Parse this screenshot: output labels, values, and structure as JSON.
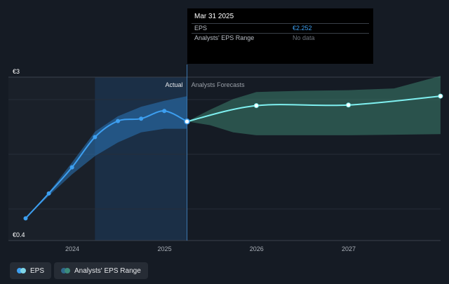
{
  "chart_data": {
    "type": "line",
    "y_axis": {
      "top_label": "€3",
      "bottom_label": "€0.4",
      "ylim": [
        0.4,
        3
      ]
    },
    "x_ticks": [
      "2024",
      "2025",
      "2026",
      "2027"
    ],
    "sections": {
      "actual_label": "Actual",
      "forecast_label": "Analysts Forecasts"
    },
    "series": [
      {
        "name": "EPS",
        "x": [
          "2023-06-30",
          "2023-09-30",
          "2023-12-31",
          "2024-03-31",
          "2024-06-30",
          "2024-09-30",
          "2024-12-31",
          "2025-03-31"
        ],
        "values": [
          0.62,
          1.04,
          1.48,
          1.99,
          2.26,
          2.3,
          2.43,
          2.252
        ]
      },
      {
        "name": "EPS Forecast",
        "x": [
          "2025-03-31",
          "2025-12-31",
          "2026-12-31",
          "2027-12-31"
        ],
        "values": [
          2.252,
          2.52,
          2.53,
          2.68
        ]
      }
    ],
    "range_actual": {
      "x": [
        "2023-06-30",
        "2023-09-30",
        "2023-12-31",
        "2024-03-31",
        "2024-06-30",
        "2024-09-30",
        "2024-12-31",
        "2025-03-31"
      ],
      "upper": [
        0.62,
        1.06,
        1.56,
        2.08,
        2.34,
        2.5,
        2.6,
        2.68
      ],
      "lower": [
        0.62,
        1.0,
        1.36,
        1.67,
        1.9,
        2.07,
        2.13,
        2.13
      ]
    },
    "range_forecast": {
      "x": [
        "2025-03-31",
        "2025-06-30",
        "2025-09-30",
        "2025-12-31",
        "2026-06-30",
        "2026-12-31",
        "2027-06-30",
        "2027-12-31"
      ],
      "upper": [
        2.252,
        2.45,
        2.63,
        2.75,
        2.77,
        2.78,
        2.81,
        3.02
      ],
      "lower": [
        2.252,
        2.19,
        2.07,
        2.02,
        2.02,
        2.02,
        2.03,
        2.04
      ]
    },
    "grid": true
  },
  "tooltip": {
    "date": "Mar 31 2025",
    "rows": [
      {
        "label": "EPS",
        "value": "€2.252"
      },
      {
        "label": "Analysts' EPS Range",
        "value": "No data"
      }
    ]
  },
  "legend": [
    {
      "label": "EPS",
      "colors": [
        "#3d9ff0",
        "#7fd6e8"
      ]
    },
    {
      "label": "Analysts' EPS Range",
      "colors": [
        "#2f6a8c",
        "#3c8c7c"
      ]
    }
  ],
  "colors": {
    "eps_line": "#3d9ff0",
    "forecast_line": "#7ff0f0",
    "actual_band": "#2a6fae",
    "forecast_band": "#3d7f6e",
    "highlight": "#1d3c5e"
  }
}
